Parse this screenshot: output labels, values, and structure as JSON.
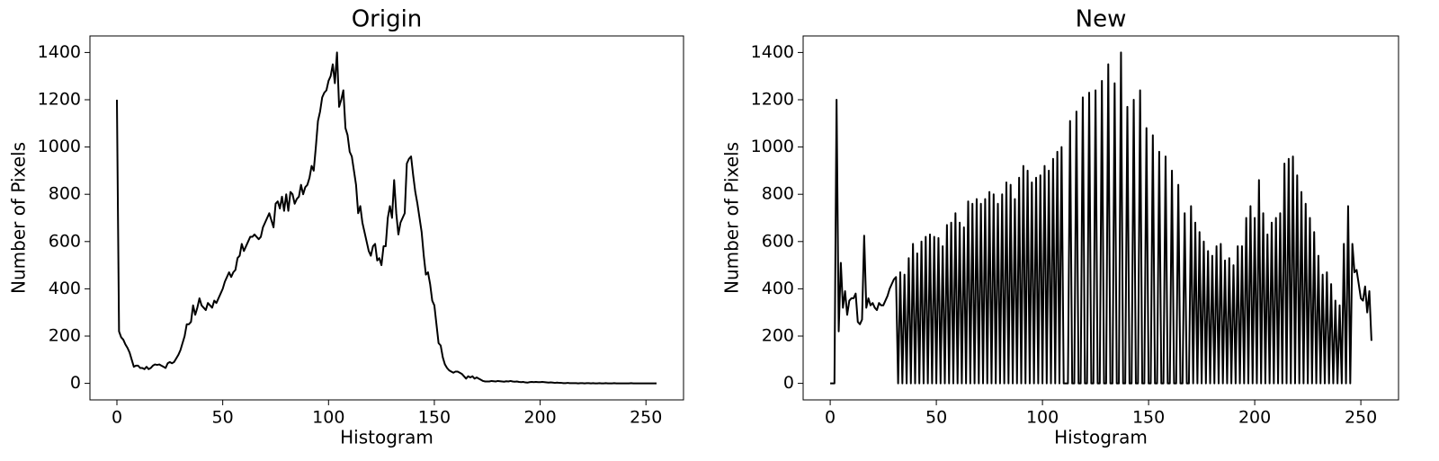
{
  "chart_data": [
    {
      "type": "line",
      "title": "Origin",
      "x_label": "Histogram",
      "y_label": "Number of Pixels",
      "color": "#000000",
      "xlim": [
        -12.75,
        267.75
      ],
      "ylim": [
        -70,
        1470
      ],
      "xticks": [
        0,
        50,
        100,
        150,
        200,
        250
      ],
      "yticks": [
        0,
        200,
        400,
        600,
        800,
        1000,
        1200,
        1400
      ],
      "x": [
        0,
        1,
        2,
        3,
        4,
        5,
        6,
        7,
        8,
        9,
        10,
        11,
        12,
        13,
        14,
        15,
        16,
        17,
        18,
        19,
        20,
        21,
        22,
        23,
        24,
        25,
        26,
        27,
        28,
        29,
        30,
        31,
        32,
        33,
        34,
        35,
        36,
        37,
        38,
        39,
        40,
        41,
        42,
        43,
        44,
        45,
        46,
        47,
        48,
        49,
        50,
        51,
        52,
        53,
        54,
        55,
        56,
        57,
        58,
        59,
        60,
        61,
        62,
        63,
        64,
        65,
        66,
        67,
        68,
        69,
        70,
        71,
        72,
        73,
        74,
        75,
        76,
        77,
        78,
        79,
        80,
        81,
        82,
        83,
        84,
        85,
        86,
        87,
        88,
        89,
        90,
        91,
        92,
        93,
        94,
        95,
        96,
        97,
        98,
        99,
        100,
        101,
        102,
        103,
        104,
        105,
        106,
        107,
        108,
        109,
        110,
        111,
        112,
        113,
        114,
        115,
        116,
        117,
        118,
        119,
        120,
        121,
        122,
        123,
        124,
        125,
        126,
        127,
        128,
        129,
        130,
        131,
        132,
        133,
        134,
        135,
        136,
        137,
        138,
        139,
        140,
        141,
        142,
        143,
        144,
        145,
        146,
        147,
        148,
        149,
        150,
        151,
        152,
        153,
        154,
        155,
        156,
        157,
        158,
        159,
        160,
        161,
        162,
        163,
        164,
        165,
        166,
        167,
        168,
        169,
        170,
        171,
        172,
        173,
        174,
        175,
        176,
        177,
        178,
        179,
        180,
        181,
        182,
        183,
        184,
        185,
        186,
        187,
        188,
        189,
        190,
        191,
        192,
        193,
        194,
        195,
        196,
        197,
        198,
        199,
        200,
        201,
        202,
        203,
        204,
        205,
        206,
        207,
        208,
        209,
        210,
        211,
        212,
        213,
        214,
        215,
        216,
        217,
        218,
        219,
        220,
        221,
        222,
        223,
        224,
        225,
        226,
        227,
        228,
        229,
        230,
        231,
        232,
        233,
        234,
        235,
        236,
        237,
        238,
        239,
        240,
        241,
        242,
        243,
        244,
        245,
        246,
        247,
        248,
        249,
        250,
        251,
        252,
        253,
        254,
        255
      ],
      "values": [
        1200,
        220,
        195,
        185,
        165,
        150,
        130,
        100,
        70,
        75,
        75,
        65,
        65,
        60,
        70,
        60,
        65,
        75,
        80,
        78,
        80,
        75,
        70,
        65,
        85,
        90,
        85,
        90,
        105,
        120,
        140,
        170,
        200,
        250,
        250,
        260,
        330,
        290,
        320,
        360,
        330,
        320,
        310,
        340,
        330,
        320,
        350,
        340,
        360,
        380,
        400,
        430,
        450,
        470,
        450,
        470,
        480,
        530,
        540,
        590,
        560,
        580,
        600,
        620,
        620,
        630,
        620,
        610,
        620,
        660,
        680,
        700,
        720,
        690,
        660,
        760,
        770,
        740,
        790,
        730,
        800,
        730,
        810,
        800,
        760,
        780,
        790,
        840,
        800,
        830,
        840,
        870,
        920,
        900,
        1000,
        1110,
        1150,
        1210,
        1230,
        1240,
        1280,
        1300,
        1350,
        1270,
        1400,
        1170,
        1200,
        1240,
        1080,
        1050,
        980,
        960,
        900,
        840,
        720,
        750,
        680,
        640,
        600,
        560,
        540,
        580,
        590,
        520,
        530,
        500,
        580,
        580,
        700,
        750,
        700,
        860,
        720,
        630,
        680,
        700,
        720,
        930,
        950,
        960,
        880,
        810,
        760,
        700,
        640,
        540,
        460,
        470,
        420,
        350,
        330,
        250,
        170,
        160,
        110,
        80,
        65,
        55,
        50,
        45,
        50,
        50,
        45,
        40,
        30,
        20,
        30,
        25,
        30,
        20,
        25,
        20,
        15,
        10,
        8,
        8,
        8,
        10,
        9,
        8,
        10,
        9,
        8,
        7,
        9,
        8,
        10,
        8,
        7,
        8,
        6,
        5,
        6,
        4,
        3,
        5,
        6,
        5,
        6,
        5,
        5,
        6,
        5,
        4,
        3,
        4,
        3,
        2,
        3,
        2,
        2,
        1,
        1,
        2,
        1,
        1,
        1,
        1,
        0,
        1,
        1,
        0,
        1,
        1,
        0,
        1,
        0,
        0,
        1,
        0,
        0,
        1,
        0,
        0,
        0,
        1,
        0,
        0,
        0,
        0,
        0,
        0,
        0,
        1,
        0,
        0,
        0,
        0,
        0,
        0,
        0,
        0,
        0,
        0,
        0,
        0
      ]
    },
    {
      "type": "line",
      "title": "New",
      "x_label": "Histogram",
      "y_label": "Number of Pixels",
      "color": "#000000",
      "xlim": [
        -12.75,
        267.75
      ],
      "ylim": [
        -70,
        1470
      ],
      "xticks": [
        0,
        50,
        100,
        150,
        200,
        250
      ],
      "yticks": [
        0,
        200,
        400,
        600,
        800,
        1000,
        1200,
        1400
      ],
      "x": [
        0,
        1,
        2,
        3,
        4,
        5,
        6,
        7,
        8,
        9,
        10,
        11,
        12,
        13,
        14,
        15,
        16,
        17,
        18,
        19,
        20,
        21,
        22,
        23,
        24,
        25,
        26,
        27,
        28,
        29,
        30,
        31,
        32,
        33,
        34,
        35,
        36,
        37,
        38,
        39,
        40,
        41,
        42,
        43,
        44,
        45,
        46,
        47,
        48,
        49,
        50,
        51,
        52,
        53,
        54,
        55,
        56,
        57,
        58,
        59,
        60,
        61,
        62,
        63,
        64,
        65,
        66,
        67,
        68,
        69,
        70,
        71,
        72,
        73,
        74,
        75,
        76,
        77,
        78,
        79,
        80,
        81,
        82,
        83,
        84,
        85,
        86,
        87,
        88,
        89,
        90,
        91,
        92,
        93,
        94,
        95,
        96,
        97,
        98,
        99,
        100,
        101,
        102,
        103,
        104,
        105,
        106,
        107,
        108,
        109,
        110,
        111,
        112,
        113,
        114,
        115,
        116,
        117,
        118,
        119,
        120,
        121,
        122,
        123,
        124,
        125,
        126,
        127,
        128,
        129,
        130,
        131,
        132,
        133,
        134,
        135,
        136,
        137,
        138,
        139,
        140,
        141,
        142,
        143,
        144,
        145,
        146,
        147,
        148,
        149,
        150,
        151,
        152,
        153,
        154,
        155,
        156,
        157,
        158,
        159,
        160,
        161,
        162,
        163,
        164,
        165,
        166,
        167,
        168,
        169,
        170,
        171,
        172,
        173,
        174,
        175,
        176,
        177,
        178,
        179,
        180,
        181,
        182,
        183,
        184,
        185,
        186,
        187,
        188,
        189,
        190,
        191,
        192,
        193,
        194,
        195,
        196,
        197,
        198,
        199,
        200,
        201,
        202,
        203,
        204,
        205,
        206,
        207,
        208,
        209,
        210,
        211,
        212,
        213,
        214,
        215,
        216,
        217,
        218,
        219,
        220,
        221,
        222,
        223,
        224,
        225,
        226,
        227,
        228,
        229,
        230,
        231,
        232,
        233,
        234,
        235,
        236,
        237,
        238,
        239,
        240,
        241,
        242,
        243,
        244,
        245,
        246,
        247,
        248,
        249,
        250,
        251,
        252,
        253,
        254,
        255
      ],
      "values": [
        0,
        0,
        0,
        1200,
        220,
        510,
        320,
        390,
        290,
        350,
        360,
        360,
        380,
        260,
        250,
        270,
        625,
        320,
        360,
        330,
        340,
        320,
        310,
        340,
        330,
        330,
        350,
        370,
        400,
        420,
        440,
        450,
        0,
        470,
        0,
        460,
        0,
        530,
        0,
        590,
        0,
        550,
        0,
        600,
        0,
        620,
        0,
        630,
        0,
        620,
        0,
        615,
        0,
        580,
        0,
        670,
        0,
        680,
        0,
        720,
        0,
        680,
        0,
        660,
        0,
        770,
        0,
        760,
        0,
        780,
        0,
        760,
        0,
        780,
        0,
        810,
        0,
        800,
        0,
        760,
        0,
        800,
        0,
        850,
        0,
        840,
        0,
        780,
        0,
        870,
        0,
        920,
        0,
        900,
        0,
        850,
        0,
        870,
        0,
        880,
        0,
        920,
        0,
        900,
        0,
        950,
        0,
        980,
        0,
        1000,
        0,
        0,
        0,
        1110,
        0,
        0,
        1150,
        0,
        0,
        1210,
        0,
        0,
        1230,
        0,
        0,
        1240,
        0,
        0,
        1280,
        0,
        0,
        1350,
        0,
        0,
        1270,
        0,
        0,
        1400,
        0,
        0,
        1170,
        0,
        0,
        1200,
        0,
        0,
        1240,
        0,
        0,
        1080,
        0,
        0,
        1050,
        0,
        0,
        980,
        0,
        0,
        960,
        0,
        0,
        900,
        0,
        0,
        840,
        0,
        0,
        720,
        0,
        0,
        750,
        0,
        680,
        0,
        640,
        0,
        600,
        0,
        560,
        0,
        540,
        0,
        580,
        0,
        590,
        0,
        520,
        0,
        530,
        0,
        500,
        0,
        580,
        0,
        580,
        0,
        700,
        0,
        750,
        0,
        700,
        0,
        860,
        0,
        720,
        0,
        630,
        0,
        680,
        0,
        700,
        0,
        720,
        0,
        930,
        0,
        950,
        0,
        960,
        0,
        880,
        0,
        810,
        0,
        760,
        0,
        700,
        0,
        640,
        0,
        540,
        0,
        460,
        0,
        470,
        0,
        420,
        0,
        350,
        0,
        330,
        0,
        590,
        0,
        750,
        0,
        590,
        470,
        480,
        420,
        360,
        350,
        410,
        300,
        390,
        180
      ]
    }
  ]
}
